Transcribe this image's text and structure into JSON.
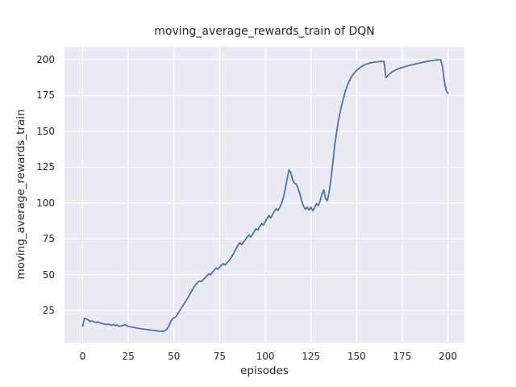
{
  "chart_data": {
    "type": "line",
    "title": "moving_average_rewards_train of DQN",
    "xlabel": "episodes",
    "ylabel": "moving_average_rewards_train",
    "x_ticks": [
      0,
      25,
      50,
      75,
      100,
      125,
      150,
      175,
      200
    ],
    "y_ticks": [
      25,
      50,
      75,
      100,
      125,
      150,
      175,
      200
    ],
    "xlim": [
      -9.9,
      209.0
    ],
    "ylim": [
      2.5,
      209.0
    ],
    "grid": true,
    "legend": null,
    "line_color": "#4C72B0",
    "plot_bg_color": "#EAEAF2",
    "grid_color": "#FFFFFF",
    "x": {
      "start": 0,
      "step": 1,
      "count": 201
    },
    "values": [
      14.0,
      19.5,
      19.0,
      18.5,
      17.3,
      17.7,
      17.1,
      16.6,
      17.0,
      16.5,
      16.1,
      15.8,
      15.5,
      15.1,
      15.4,
      15.0,
      14.7,
      15.1,
      14.4,
      14.7,
      13.9,
      14.2,
      14.5,
      15.1,
      14.3,
      13.9,
      13.6,
      13.4,
      13.2,
      12.9,
      12.6,
      12.4,
      12.2,
      12.0,
      11.9,
      11.7,
      11.5,
      11.3,
      11.2,
      11.0,
      10.9,
      10.7,
      10.6,
      10.5,
      10.4,
      10.8,
      11.9,
      13.5,
      16.5,
      18.8,
      19.8,
      20.4,
      22.5,
      24.5,
      26.5,
      28.5,
      30.5,
      32.5,
      34.6,
      37.0,
      39.2,
      41.5,
      43.0,
      44.5,
      45.6,
      45.2,
      46.5,
      47.6,
      49.0,
      50.5,
      49.8,
      51.5,
      53.0,
      54.6,
      53.8,
      55.1,
      56.5,
      57.6,
      56.8,
      58.1,
      59.6,
      61.2,
      63.1,
      65.6,
      68.1,
      70.5,
      72.1,
      70.8,
      72.5,
      74.1,
      76.0,
      77.6,
      76.2,
      78.1,
      80.1,
      82.1,
      81.1,
      83.6,
      85.6,
      84.6,
      87.1,
      89.1,
      91.1,
      89.6,
      92.1,
      94.1,
      96.1,
      94.6,
      97.1,
      100.1,
      104.1,
      110.1,
      117.1,
      123.1,
      121.1,
      116.1,
      113.6,
      113.1,
      110.1,
      106.1,
      101.1,
      97.6,
      95.6,
      97.1,
      95.1,
      97.1,
      94.6,
      96.6,
      99.6,
      98.1,
      101.1,
      106.1,
      109.1,
      103.1,
      101.6,
      108.1,
      117.1,
      128.1,
      140.1,
      149.1,
      157.1,
      163.6,
      169.1,
      174.1,
      178.6,
      182.1,
      185.1,
      187.6,
      189.6,
      191.1,
      192.6,
      193.6,
      194.6,
      195.4,
      196.1,
      196.7,
      197.2,
      197.6,
      197.9,
      198.1,
      198.3,
      198.5,
      198.6,
      198.7,
      198.8,
      198.9,
      187.5,
      188.8,
      190.0,
      191.0,
      191.9,
      192.6,
      193.2,
      193.7,
      194.1,
      194.5,
      194.9,
      195.3,
      195.7,
      196.0,
      196.3,
      196.6,
      196.9,
      197.2,
      197.5,
      197.8,
      198.1,
      198.4,
      198.7,
      198.9,
      199.1,
      199.3,
      199.5,
      199.7,
      199.8,
      199.9,
      200.0,
      195.0,
      185.0,
      178.5,
      176.5
    ]
  }
}
